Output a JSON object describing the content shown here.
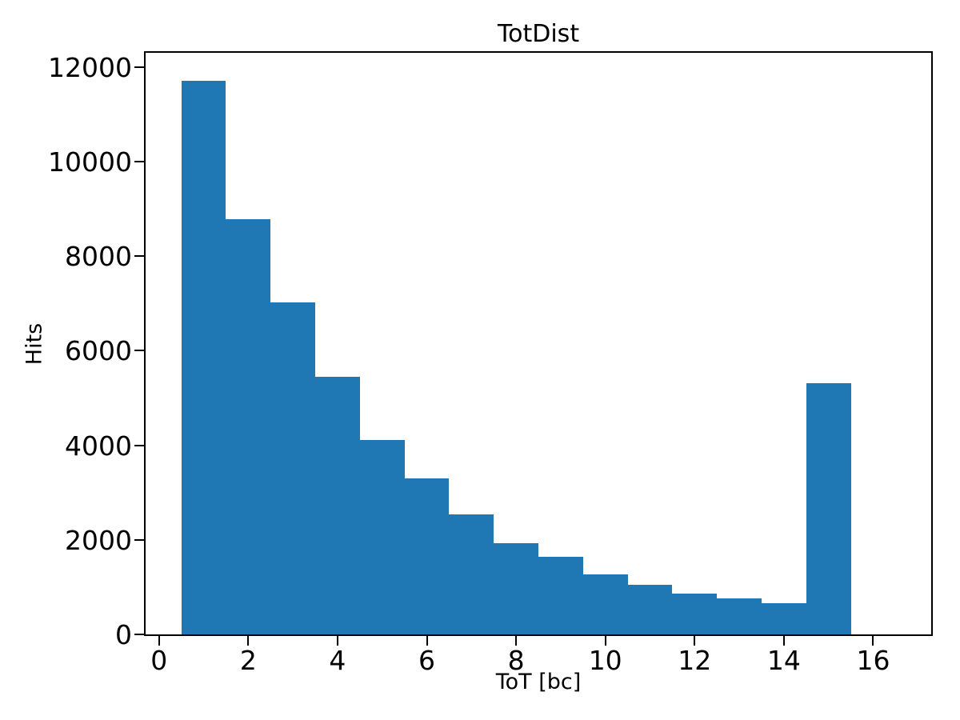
{
  "figure": {
    "background": "#ffffff"
  },
  "chart_data": {
    "type": "bar",
    "title": "TotDist",
    "xlabel": "ToT [bc]",
    "ylabel": "Hits",
    "bar_color": "#1f77b4",
    "axis_color": "#000000",
    "grid": false,
    "legend_position": "none",
    "xlim": [
      -0.3,
      17.3
    ],
    "ylim": [
      0,
      12300
    ],
    "x_ticks": [
      0,
      2,
      4,
      6,
      8,
      10,
      12,
      14,
      16
    ],
    "y_ticks": [
      0,
      2000,
      4000,
      6000,
      8000,
      10000,
      12000
    ],
    "bin_edges": [
      0.5,
      1.5,
      2.5,
      3.5,
      4.5,
      5.5,
      6.5,
      7.5,
      8.5,
      9.5,
      10.5,
      11.5,
      12.5,
      13.5,
      14.5,
      15.5
    ],
    "bin_centers": [
      1,
      2,
      3,
      4,
      5,
      6,
      7,
      8,
      9,
      10,
      11,
      12,
      13,
      14,
      15
    ],
    "counts": [
      11700,
      8775,
      7020,
      5440,
      4115,
      3305,
      2545,
      1925,
      1640,
      1265,
      1055,
      865,
      765,
      660,
      5310
    ]
  }
}
